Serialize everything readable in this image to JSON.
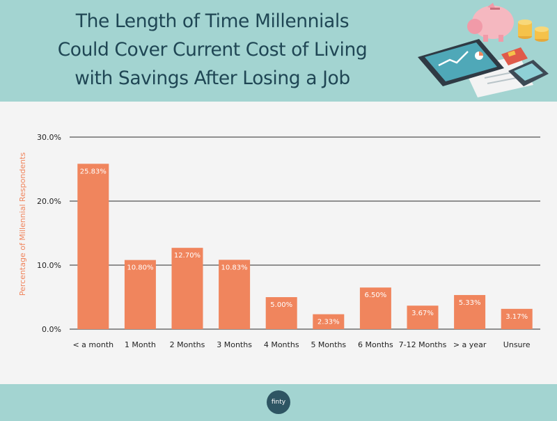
{
  "header": {
    "title_lines": [
      "The Length of Time Millennials",
      "Could Cover Current Cost of Living",
      "with Savings After Losing a Job"
    ],
    "illustration_icons": [
      "piggy-bank-icon",
      "tablet-chart-icon",
      "calculator-icon",
      "coins-icon",
      "credit-card-icon",
      "document-icon"
    ]
  },
  "colors": {
    "header_bg": "#a3d4d1",
    "title": "#1f4654",
    "bar": "#f0855d",
    "axis_label": "#f0855d",
    "text": "#222222"
  },
  "chart_data": {
    "type": "bar",
    "categories": [
      "< a month",
      "1 Month",
      "2 Months",
      "3 Months",
      "4 Months",
      "5 Months",
      "6 Months",
      "7-12 Months",
      "> a year",
      "Unsure"
    ],
    "values": [
      25.83,
      10.8,
      12.7,
      10.83,
      5.0,
      2.33,
      6.5,
      3.67,
      5.33,
      3.17
    ],
    "data_labels": [
      "25.83%",
      "10.80%",
      "12.70%",
      "10.83%",
      "5.00%",
      "2.33%",
      "6.50%",
      "3.67%",
      "5.33%",
      "3.17%"
    ],
    "title": "",
    "xlabel": "",
    "ylabel": "Percentage of Millennial Respondents",
    "ylim": [
      0,
      30
    ],
    "yticks": [
      0,
      10,
      20,
      30
    ],
    "ytick_labels": [
      "0.0%",
      "10.0%",
      "20.0%",
      "30.0%"
    ],
    "grid": true,
    "legend": "none"
  },
  "footer": {
    "logo_text": "finty"
  }
}
